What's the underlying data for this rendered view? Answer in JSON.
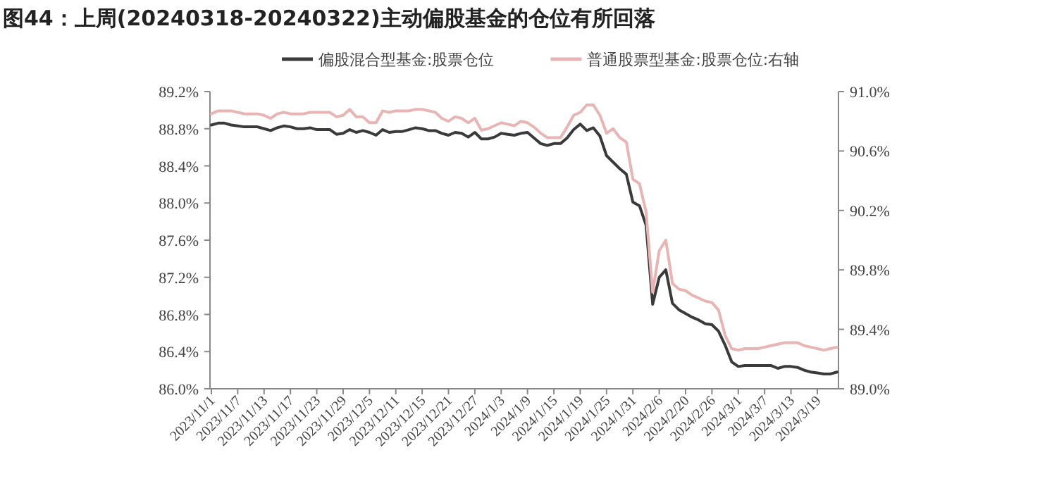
{
  "chart_data": {
    "type": "line",
    "title": "图44：上周(20240318-20240322)主动偏股基金的仓位有所回落",
    "categories": [
      "2023/11/1",
      null,
      null,
      null,
      "2023/11/7",
      null,
      null,
      null,
      "2023/11/13",
      null,
      null,
      null,
      "2023/11/17",
      null,
      null,
      null,
      "2023/11/23",
      null,
      null,
      null,
      "2023/11/29",
      null,
      null,
      null,
      "2023/12/5",
      null,
      null,
      null,
      "2023/12/11",
      null,
      null,
      null,
      "2023/12/15",
      null,
      null,
      null,
      "2023/12/21",
      null,
      null,
      null,
      "2023/12/27",
      null,
      null,
      null,
      "2024/1/3",
      null,
      null,
      null,
      "2024/1/9",
      null,
      null,
      null,
      "2024/1/15",
      null,
      null,
      null,
      "2024/1/19",
      null,
      null,
      null,
      "2024/1/25",
      null,
      null,
      null,
      "2024/1/31",
      null,
      null,
      null,
      "2024/2/6",
      null,
      null,
      null,
      "2024/2/20",
      null,
      null,
      null,
      "2024/2/26",
      null,
      null,
      null,
      "2024/3/1",
      null,
      null,
      null,
      "2024/3/7",
      null,
      null,
      null,
      "2024/3/13",
      null,
      null,
      null,
      "2024/3/19",
      null,
      null,
      null
    ],
    "series": [
      {
        "name": "偏股混合型基金:股票仓位",
        "color": "#3a3a3a",
        "values": [
          88.84,
          88.86,
          88.86,
          88.84,
          88.83,
          88.82,
          88.82,
          88.82,
          88.8,
          88.78,
          88.81,
          88.83,
          88.82,
          88.8,
          88.8,
          88.81,
          88.79,
          88.79,
          88.79,
          88.74,
          88.75,
          88.79,
          88.76,
          88.78,
          88.76,
          88.73,
          88.79,
          88.76,
          88.77,
          88.77,
          88.79,
          88.81,
          88.8,
          88.78,
          88.78,
          88.75,
          88.73,
          88.76,
          88.75,
          88.71,
          88.76,
          88.69,
          88.69,
          88.71,
          88.75,
          88.74,
          88.73,
          88.75,
          88.76,
          88.7,
          88.64,
          88.62,
          88.64,
          88.64,
          88.7,
          88.79,
          88.85,
          88.78,
          88.81,
          88.72,
          88.51,
          88.44,
          88.37,
          88.31,
          88.01,
          87.97,
          87.76,
          86.91,
          87.2,
          87.28,
          86.92,
          86.85,
          86.81,
          86.77,
          86.74,
          86.7,
          86.69,
          86.62,
          86.47,
          86.29,
          86.24,
          86.25,
          86.25,
          86.25,
          86.25,
          86.25,
          86.22,
          86.24,
          86.24,
          86.23,
          86.2,
          86.18,
          86.17,
          86.16,
          86.16,
          86.18
        ]
      },
      {
        "name": "普通股票型基金:股票仓位:右轴",
        "color": "#e8b4b4",
        "axis": "y2",
        "values": [
          90.85,
          90.87,
          90.87,
          90.87,
          90.86,
          90.85,
          90.85,
          90.85,
          90.84,
          90.82,
          90.85,
          90.86,
          90.85,
          90.85,
          90.85,
          90.86,
          90.86,
          90.86,
          90.86,
          90.83,
          90.84,
          90.88,
          90.83,
          90.83,
          90.79,
          90.79,
          90.87,
          90.86,
          90.87,
          90.87,
          90.87,
          90.88,
          90.88,
          90.87,
          90.86,
          90.82,
          90.8,
          90.83,
          90.82,
          90.79,
          90.82,
          90.74,
          90.75,
          90.77,
          90.79,
          90.78,
          90.77,
          90.8,
          90.79,
          90.76,
          90.72,
          90.69,
          90.69,
          90.69,
          90.76,
          90.84,
          90.86,
          90.91,
          90.91,
          90.84,
          90.72,
          90.75,
          90.69,
          90.66,
          90.41,
          90.38,
          90.19,
          89.65,
          89.93,
          90.0,
          89.71,
          89.67,
          89.66,
          89.63,
          89.61,
          89.59,
          89.58,
          89.53,
          89.36,
          89.27,
          89.26,
          89.27,
          89.27,
          89.27,
          89.28,
          89.29,
          89.3,
          89.31,
          89.31,
          89.31,
          89.29,
          89.28,
          89.27,
          89.26,
          89.27,
          89.28
        ]
      }
    ],
    "ylim": [
      86.0,
      89.2
    ],
    "yticks": [
      {
        "value": 86.0,
        "label": "86.0%"
      },
      {
        "value": 86.4,
        "label": "86.4%"
      },
      {
        "value": 86.8,
        "label": "86.8%"
      },
      {
        "value": 87.2,
        "label": "87.2%"
      },
      {
        "value": 87.6,
        "label": "87.6%"
      },
      {
        "value": 88.0,
        "label": "88.0%"
      },
      {
        "value": 88.4,
        "label": "88.4%"
      },
      {
        "value": 88.8,
        "label": "88.8%"
      },
      {
        "value": 89.2,
        "label": "89.2%"
      }
    ],
    "y2lim": [
      89.0,
      91.0
    ],
    "y2ticks": [
      {
        "value": 89.0,
        "label": "89.0%"
      },
      {
        "value": 89.4,
        "label": "89.4%"
      },
      {
        "value": 89.8,
        "label": "89.8%"
      },
      {
        "value": 90.2,
        "label": "90.2%"
      },
      {
        "value": 90.6,
        "label": "90.6%"
      },
      {
        "value": 91.0,
        "label": "91.0%"
      }
    ],
    "legend": "top",
    "grid": false,
    "marker": "none",
    "line_style": "solid"
  }
}
